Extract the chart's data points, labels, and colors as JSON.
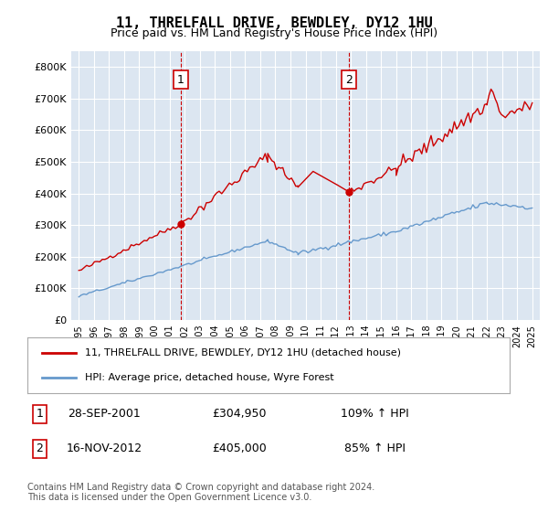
{
  "title": "11, THRELFALL DRIVE, BEWDLEY, DY12 1HU",
  "subtitle": "Price paid vs. HM Land Registry's House Price Index (HPI)",
  "legend_line1": "11, THRELFALL DRIVE, BEWDLEY, DY12 1HU (detached house)",
  "legend_line2": "HPI: Average price, detached house, Wyre Forest",
  "note1_date": "28-SEP-2001",
  "note1_price": "£304,950",
  "note1_hpi": "109% ↑ HPI",
  "note2_date": "16-NOV-2012",
  "note2_price": "£405,000",
  "note2_hpi": "85% ↑ HPI",
  "footer": "Contains HM Land Registry data © Crown copyright and database right 2024.\nThis data is licensed under the Open Government Licence v3.0.",
  "red_color": "#cc0000",
  "blue_color": "#6699cc",
  "bg_color": "#dce6f1",
  "grid_color": "#ffffff",
  "marker1_x": 2001.75,
  "marker1_y": 304950,
  "marker2_x": 2012.88,
  "marker2_y": 405000,
  "ylim": [
    0,
    850000
  ],
  "xlim": [
    1994.5,
    2025.5
  ],
  "ytick_labels": [
    "£0",
    "£100K",
    "£200K",
    "£300K",
    "£400K",
    "£500K",
    "£600K",
    "£700K",
    "£800K"
  ],
  "ytick_values": [
    0,
    100000,
    200000,
    300000,
    400000,
    500000,
    600000,
    700000,
    800000
  ]
}
